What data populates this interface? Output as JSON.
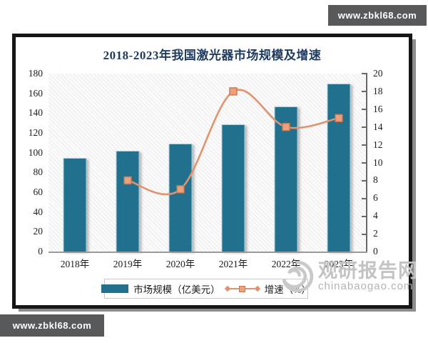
{
  "page": {
    "site_badge_text": "www.zbkl68.com"
  },
  "watermark": {
    "brand_name": "观研报告网",
    "brand_site": "chinabaogao.com"
  },
  "chart_data": {
    "type": "bar",
    "subtype": "combo-bar-line-dual-axis",
    "title": "2018-2023年我国激光器市场规模及增速",
    "categories": [
      "2018年",
      "2019年",
      "2020年",
      "2021年",
      "2022年",
      "2023年"
    ],
    "series": [
      {
        "name": "市场规模（亿美元）",
        "chart_type": "bar",
        "axis": "left",
        "color": "#21708e",
        "values": [
          95,
          102,
          109,
          129,
          147,
          170
        ]
      },
      {
        "name": "增速（%）",
        "chart_type": "line",
        "axis": "right",
        "color": "#e2926e",
        "marker": "square",
        "marker_fill": "#eda07c",
        "marker_stroke": "#c97850",
        "values": [
          null,
          8,
          7,
          18,
          14,
          15
        ]
      }
    ],
    "left_axis": {
      "lim": [
        0,
        180
      ],
      "ticks": [
        0,
        20,
        40,
        60,
        80,
        100,
        120,
        140,
        160,
        180
      ]
    },
    "right_axis": {
      "lim": [
        0,
        20
      ],
      "ticks": [
        0,
        2,
        4,
        6,
        8,
        10,
        12,
        14,
        16,
        18,
        20
      ]
    },
    "legend_position": "bottom",
    "grid": false,
    "plot_background": "diagonal-hatch"
  }
}
